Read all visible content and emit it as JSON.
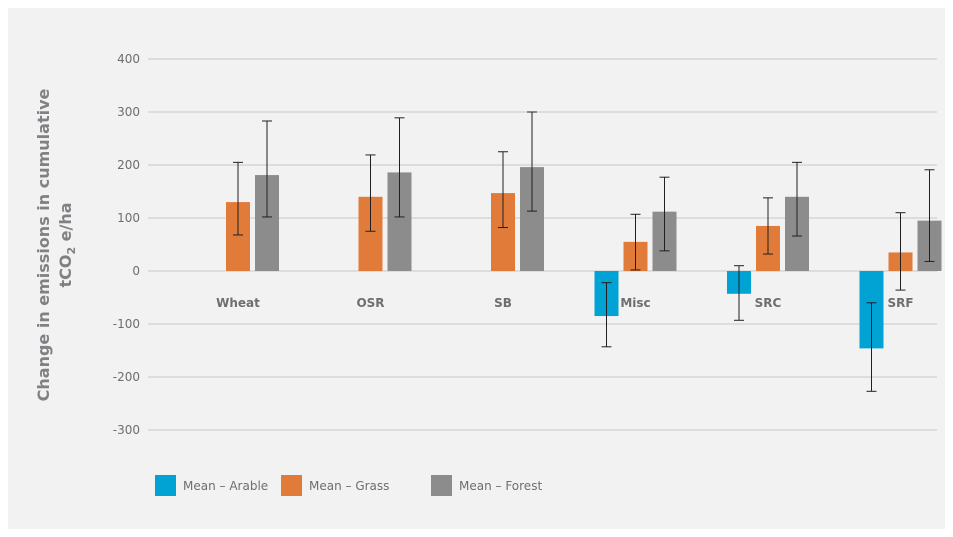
{
  "chart_data": {
    "type": "bar",
    "title": "",
    "ylabel_line1": "Change in emissions in cumulative",
    "ylabel_line2_pre": "tCO",
    "ylabel_line2_sub": "2",
    "ylabel_line2_post": " e/ha",
    "ylim": [
      -300,
      400
    ],
    "yticks": [
      400,
      300,
      200,
      100,
      0,
      -100,
      -200,
      -300
    ],
    "grid": true,
    "legend_position": "bottom-left",
    "categories": [
      "Wheat",
      "OSR",
      "SB",
      "Misc",
      "SRC",
      "SRF"
    ],
    "series": [
      {
        "name": "Mean – Arable",
        "color": "#00a3d4",
        "values": [
          null,
          null,
          null,
          -85,
          -43,
          -146
        ],
        "err_low": [
          null,
          null,
          null,
          -143,
          -93,
          -227
        ],
        "err_high": [
          null,
          null,
          null,
          -22,
          10,
          -60
        ]
      },
      {
        "name": "Mean – Grass",
        "color": "#e07b39",
        "values": [
          130,
          140,
          147,
          55,
          85,
          35
        ],
        "err_low": [
          68,
          75,
          82,
          2,
          32,
          -36
        ],
        "err_high": [
          205,
          219,
          225,
          107,
          138,
          110
        ]
      },
      {
        "name": "Mean – Forest",
        "color": "#8c8c8c",
        "values": [
          181,
          186,
          196,
          112,
          140,
          95
        ],
        "err_low": [
          102,
          102,
          113,
          38,
          66,
          18
        ],
        "err_high": [
          283,
          289,
          300,
          177,
          205,
          191
        ]
      }
    ]
  }
}
